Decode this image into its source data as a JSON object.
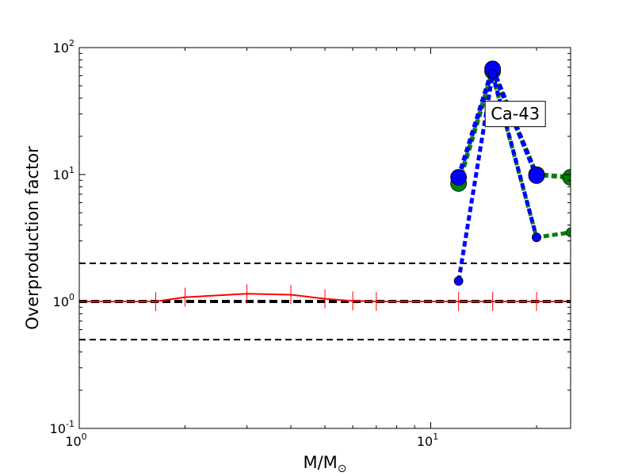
{
  "chart_data": {
    "type": "line",
    "xscale": "log",
    "yscale": "log",
    "xlim": [
      1,
      25
    ],
    "ylim": [
      0.1,
      100
    ],
    "xlabel": "M/M",
    "xlabel_sub": "⊙",
    "ylabel": "Overproduction factor",
    "xticks": [
      {
        "value": 1,
        "base": "10",
        "exp": "0"
      },
      {
        "value": 10,
        "base": "10",
        "exp": "1"
      }
    ],
    "yticks": [
      {
        "value": 0.1,
        "base": "10",
        "exp": "-1"
      },
      {
        "value": 1,
        "base": "10",
        "exp": "0"
      },
      {
        "value": 10,
        "base": "10",
        "exp": "1"
      },
      {
        "value": 100,
        "base": "10",
        "exp": "2"
      }
    ],
    "hlines": [
      {
        "y": 2.0,
        "color": "#000000",
        "dash": "dashed",
        "width": 2
      },
      {
        "y": 1.0,
        "color": "#000000",
        "dash": "dashed",
        "width": 4
      },
      {
        "y": 0.5,
        "color": "#000000",
        "dash": "dashed",
        "width": 2
      }
    ],
    "annotation": {
      "text": "Ca-43",
      "x": 17.4,
      "y": 30
    },
    "series": [
      {
        "style": "solid-red",
        "color": "#ff0000",
        "x": [
          1.0,
          1.65,
          2.0,
          3.0,
          4.0,
          5.0,
          6.0,
          7.0,
          12.0,
          15.0,
          20.0,
          25.0
        ],
        "y": [
          1.0,
          1.0,
          1.08,
          1.15,
          1.13,
          1.05,
          1.01,
          1.0,
          1.0,
          1.0,
          1.0,
          1.0
        ]
      },
      {
        "style": "green-dashed-large",
        "color": "#008000",
        "x": [
          12.0,
          15.0,
          20.0,
          25.0
        ],
        "y": [
          8.5,
          65.0,
          10.0,
          9.5
        ]
      },
      {
        "style": "green-dashed-small",
        "color": "#008000",
        "x": [
          15.0,
          20.0,
          25.0
        ],
        "y": [
          60.0,
          3.2,
          3.5
        ]
      },
      {
        "style": "blue-dashed-large",
        "color": "#0000ff",
        "x": [
          12.0,
          15.0,
          20.0
        ],
        "y": [
          9.5,
          68.0,
          9.8
        ]
      },
      {
        "style": "blue-dashed-small",
        "color": "#0000ff",
        "x": [
          12.0,
          15.0,
          20.0
        ],
        "y": [
          1.45,
          62.0,
          3.2
        ]
      }
    ]
  }
}
